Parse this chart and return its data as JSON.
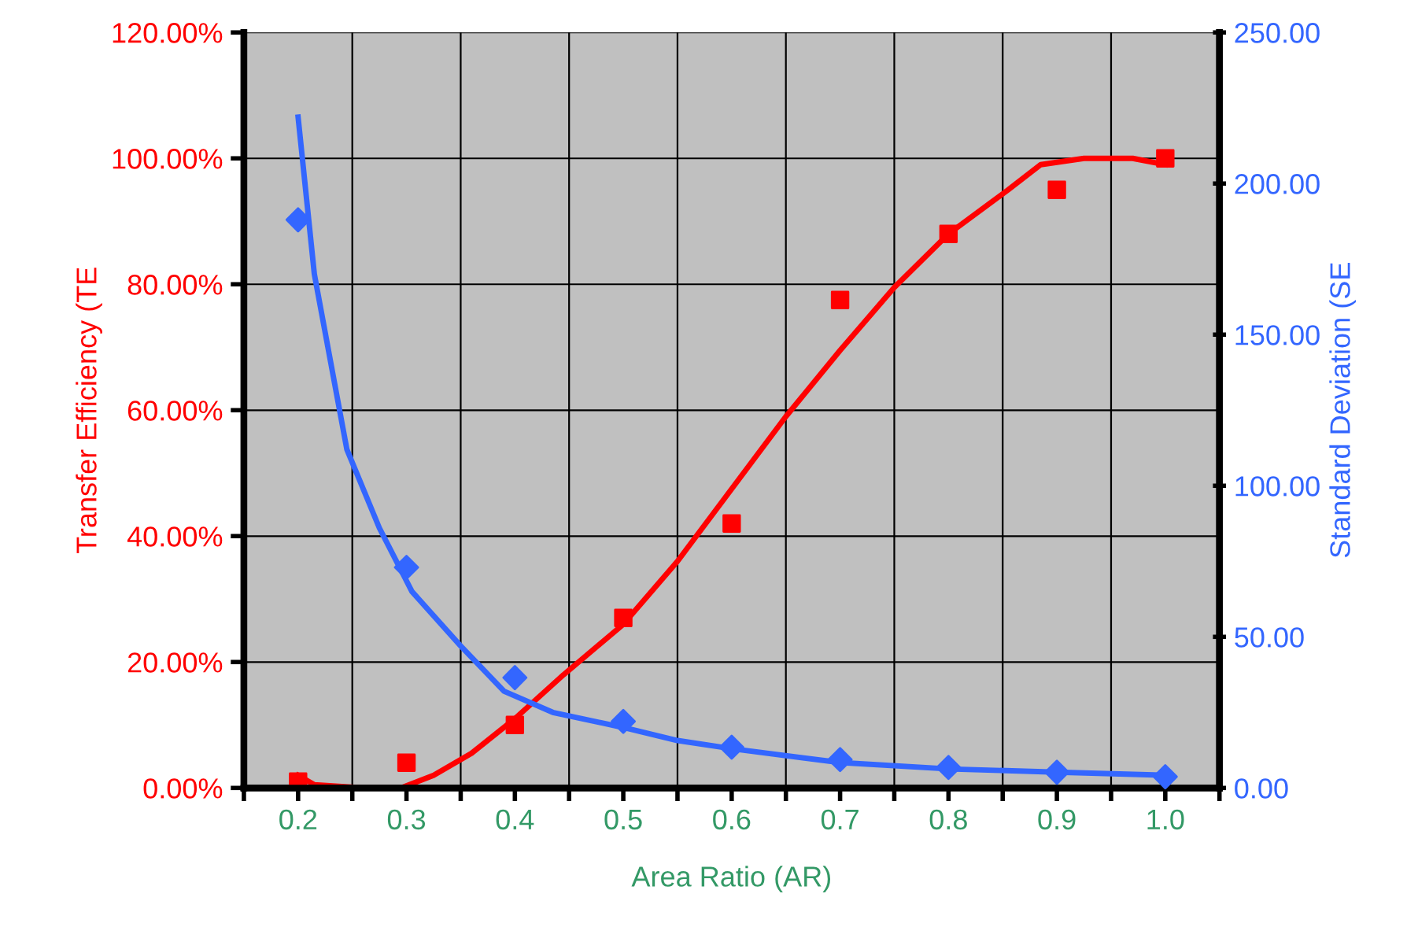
{
  "chart_data": {
    "type": "scatter",
    "xlabel": "Area Ratio (AR)",
    "ylabel": "Transfer Efficiency (TE",
    "y2label": "Standard Deviation (SE",
    "xlim": [
      0.15,
      1.05
    ],
    "xticks": [
      {
        "value": 0.15,
        "label": null
      },
      {
        "value": 0.2,
        "label": "0.2"
      },
      {
        "value": 0.25,
        "label": null
      },
      {
        "value": 0.3,
        "label": "0.3"
      },
      {
        "value": 0.35,
        "label": null
      },
      {
        "value": 0.4,
        "label": "0.4"
      },
      {
        "value": 0.45,
        "label": null
      },
      {
        "value": 0.5,
        "label": "0.5"
      },
      {
        "value": 0.55,
        "label": null
      },
      {
        "value": 0.6,
        "label": "0.6"
      },
      {
        "value": 0.65,
        "label": null
      },
      {
        "value": 0.7,
        "label": "0.7"
      },
      {
        "value": 0.75,
        "label": null
      },
      {
        "value": 0.8,
        "label": "0.8"
      },
      {
        "value": 0.85,
        "label": null
      },
      {
        "value": 0.9,
        "label": "0.9"
      },
      {
        "value": 0.95,
        "label": null
      },
      {
        "value": 1.0,
        "label": "1.0"
      },
      {
        "value": 1.05,
        "label": null
      }
    ],
    "ylim": [
      0,
      120
    ],
    "yticks": [
      {
        "value": 0,
        "label": "0.00%"
      },
      {
        "value": 20,
        "label": "20.00%"
      },
      {
        "value": 40,
        "label": "40.00%"
      },
      {
        "value": 60,
        "label": "60.00%"
      },
      {
        "value": 80,
        "label": "80.00%"
      },
      {
        "value": 100,
        "label": "100.00%"
      },
      {
        "value": 120,
        "label": "120.00%"
      }
    ],
    "y2lim": [
      0,
      250
    ],
    "y2ticks": [
      {
        "value": 0,
        "label": "0.00"
      },
      {
        "value": 50,
        "label": "50.00"
      },
      {
        "value": 100,
        "label": "100.00"
      },
      {
        "value": 150,
        "label": "150.00"
      },
      {
        "value": 200,
        "label": "200.00"
      },
      {
        "value": 250,
        "label": "250.00"
      }
    ],
    "grid": true,
    "legend": false,
    "series": [
      {
        "marker": "square",
        "color": "#ff0000",
        "x": [
          0.2,
          0.3,
          0.4,
          0.5,
          0.6,
          0.7,
          0.8,
          0.9,
          1.0
        ],
        "values": [
          1,
          4,
          10,
          27,
          42,
          77.5,
          88,
          95,
          100
        ]
      },
      {
        "type": "line",
        "marker": "none",
        "color": "#ff0000",
        "x": [
          0.2,
          0.215,
          0.26,
          0.295,
          0.325,
          0.36,
          0.4,
          0.445,
          0.5,
          0.55,
          0.6,
          0.65,
          0.7,
          0.75,
          0.8,
          0.855,
          0.885,
          0.925,
          0.97,
          1.0
        ],
        "values": [
          2,
          0.5,
          0,
          0,
          2,
          5.5,
          11,
          18,
          26,
          36,
          47.5,
          59,
          69.5,
          79.5,
          88,
          95,
          99,
          100,
          100,
          99
        ]
      },
      {
        "marker": "diamond",
        "axis": "y2",
        "color": "#3366ff",
        "x": [
          0.2,
          0.3,
          0.4,
          0.5,
          0.6,
          0.7,
          0.8,
          0.9,
          1.0
        ],
        "values": [
          188,
          73,
          36.5,
          22,
          13.5,
          9.4,
          6.8,
          5.2,
          3.7
        ]
      },
      {
        "type": "line",
        "marker": "none",
        "axis": "y2",
        "color": "#3366ff",
        "x": [
          0.2,
          0.215,
          0.245,
          0.275,
          0.305,
          0.35,
          0.39,
          0.435,
          0.5,
          0.55,
          0.6,
          0.7,
          0.8,
          0.9,
          1.0
        ],
        "values": [
          222,
          170,
          112,
          86,
          65,
          47,
          32,
          25,
          20,
          15.7,
          13,
          8.4,
          6.3,
          5.2,
          4.2
        ]
      }
    ]
  }
}
